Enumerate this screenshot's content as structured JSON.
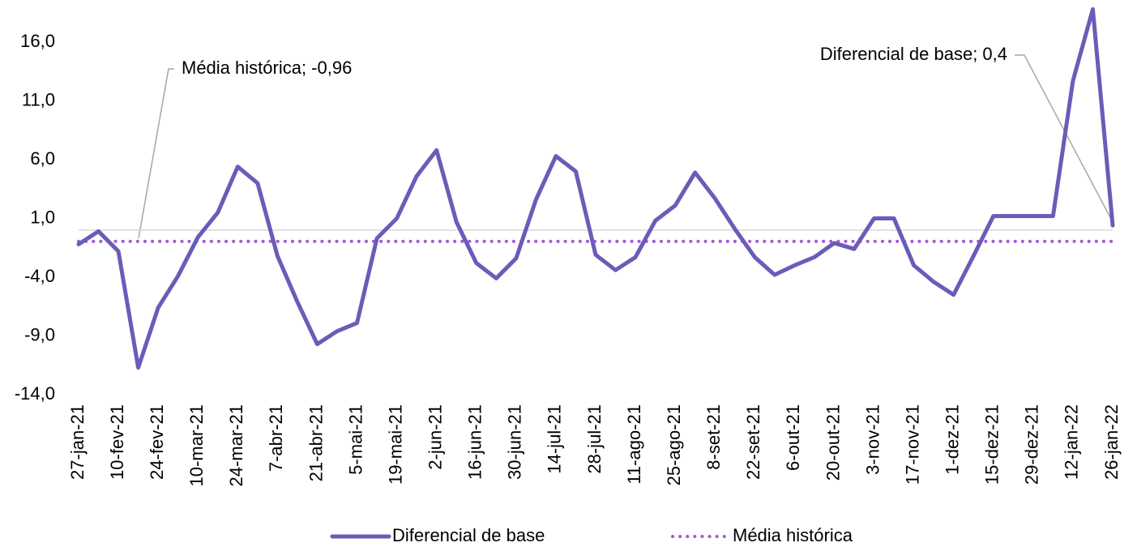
{
  "chart_data": {
    "type": "line",
    "categories": [
      "27-jan-21",
      null,
      "10-fev-21",
      null,
      "24-fev-21",
      null,
      "10-mar-21",
      null,
      "24-mar-21",
      null,
      "7-abr-21",
      null,
      "21-abr-21",
      null,
      "5-mai-21",
      null,
      "19-mai-21",
      null,
      "2-jun-21",
      null,
      "16-jun-21",
      null,
      "30-jun-21",
      null,
      "14-jul-21",
      null,
      "28-jul-21",
      null,
      "11-ago-21",
      null,
      "25-ago-21",
      null,
      "8-set-21",
      null,
      "22-set-21",
      null,
      "6-out-21",
      null,
      "20-out-21",
      null,
      "3-nov-21",
      null,
      "17-nov-21",
      null,
      "1-dez-21",
      null,
      "15-dez-21",
      null,
      "29-dez-21",
      null,
      "12-jan-22",
      null,
      "26-jan-22"
    ],
    "series": [
      {
        "name": "Diferencial de base",
        "color": "#6a5cb8",
        "style": "solid",
        "values": [
          -1.2,
          -0.1,
          -1.8,
          -11.7,
          -6.6,
          -3.9,
          -0.6,
          1.5,
          5.4,
          4.0,
          -2.2,
          -6.1,
          -9.7,
          -8.6,
          -7.9,
          -0.7,
          1.0,
          4.6,
          6.8,
          0.7,
          -2.8,
          -4.1,
          -2.4,
          2.6,
          6.3,
          5.0,
          -2.1,
          -3.4,
          -2.3,
          0.8,
          2.1,
          4.9,
          2.7,
          0.1,
          -2.3,
          -3.8,
          -3.0,
          -2.3,
          -1.1,
          -1.6,
          1.0,
          1.0,
          -3.0,
          -4.4,
          -5.5,
          -2.2,
          1.2,
          1.2,
          1.2,
          1.2,
          12.7,
          18.8,
          0.4
        ]
      },
      {
        "name": "Média histórica",
        "color": "#a35ad6",
        "style": "dotted",
        "values": [
          -0.96,
          -0.96,
          -0.96,
          -0.96,
          -0.96,
          -0.96,
          -0.96,
          -0.96,
          -0.96,
          -0.96,
          -0.96,
          -0.96,
          -0.96,
          -0.96,
          -0.96,
          -0.96,
          -0.96,
          -0.96,
          -0.96,
          -0.96,
          -0.96,
          -0.96,
          -0.96,
          -0.96,
          -0.96,
          -0.96,
          -0.96,
          -0.96,
          -0.96,
          -0.96,
          -0.96,
          -0.96,
          -0.96,
          -0.96,
          -0.96,
          -0.96,
          -0.96,
          -0.96,
          -0.96,
          -0.96,
          -0.96,
          -0.96,
          -0.96,
          -0.96,
          -0.96,
          -0.96,
          -0.96,
          -0.96,
          -0.96,
          -0.96,
          -0.96,
          -0.96,
          -0.96
        ]
      }
    ],
    "ylim": [
      -14,
      19
    ],
    "yticks": [
      {
        "value": -14,
        "label": "-14,0"
      },
      {
        "value": -9,
        "label": "-9,0"
      },
      {
        "value": -4,
        "label": "-4,0"
      },
      {
        "value": 1,
        "label": "1,0"
      },
      {
        "value": 6,
        "label": "6,0"
      },
      {
        "value": 11,
        "label": "11,0"
      },
      {
        "value": 16,
        "label": "16,0"
      }
    ],
    "annotations": [
      "Média histórica; -0,96",
      "Diferencial de base; 0,4"
    ],
    "legend": "bottom"
  }
}
